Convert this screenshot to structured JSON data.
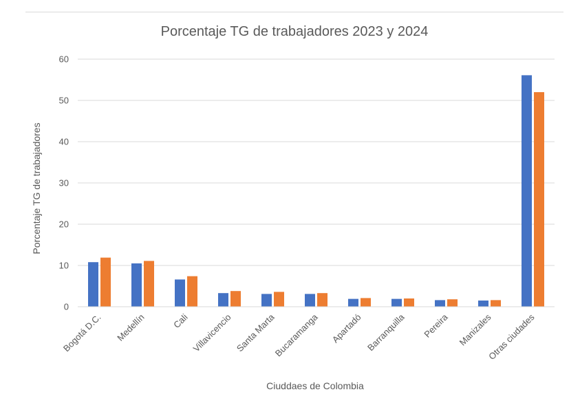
{
  "chart_data": {
    "type": "bar",
    "title": "Porcentaje TG de trabajadores 2023 y 2024",
    "xlabel": "Ciuddaes de Colombia",
    "ylabel": "Porcentaje TG de trabajadores",
    "ylim": [
      0,
      60
    ],
    "yticks": [
      "0",
      "10",
      "20",
      "30",
      "40",
      "50",
      "60"
    ],
    "grid": true,
    "categories": [
      "Bogotá D.C.",
      "Medellín",
      "Cali",
      "Villavicencio",
      "Santa Marta",
      "Bucaramanga",
      "Apartadó",
      "Barranquilla",
      "Pereira",
      "Manizales",
      "Otras ciudades"
    ],
    "series": [
      {
        "color": "#4472C4",
        "values": [
          10.8,
          10.5,
          6.6,
          3.3,
          3.1,
          3.1,
          1.9,
          1.9,
          1.6,
          1.5,
          56.1
        ]
      },
      {
        "color": "#ED7D31",
        "values": [
          11.9,
          11.1,
          7.4,
          3.8,
          3.6,
          3.3,
          2.1,
          2.0,
          1.8,
          1.6,
          52.0
        ]
      }
    ]
  }
}
